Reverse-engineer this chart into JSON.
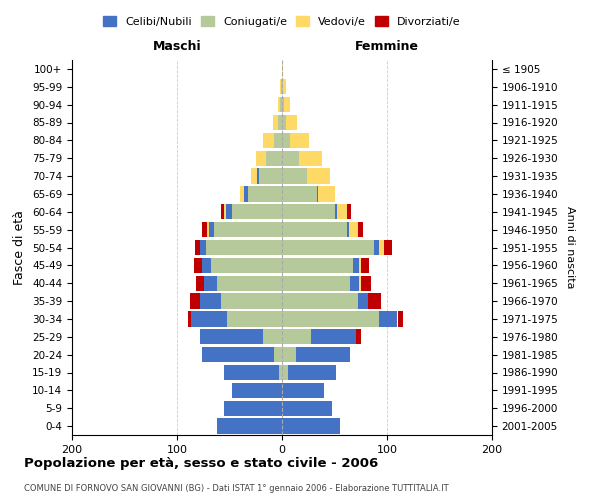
{
  "age_groups": [
    "100+",
    "95-99",
    "90-94",
    "85-89",
    "80-84",
    "75-79",
    "70-74",
    "65-69",
    "60-64",
    "55-59",
    "50-54",
    "45-49",
    "40-44",
    "35-39",
    "30-34",
    "25-29",
    "20-24",
    "15-19",
    "10-14",
    "5-9",
    "0-4"
  ],
  "birth_years": [
    "≤ 1905",
    "1906-1910",
    "1911-1915",
    "1916-1920",
    "1921-1925",
    "1926-1930",
    "1931-1935",
    "1936-1940",
    "1941-1945",
    "1946-1950",
    "1951-1955",
    "1956-1960",
    "1961-1965",
    "1966-1970",
    "1971-1975",
    "1976-1980",
    "1981-1985",
    "1986-1990",
    "1991-1995",
    "1996-2000",
    "2001-2005"
  ],
  "male": {
    "celibe": [
      0,
      0,
      0,
      0,
      0,
      0,
      2,
      4,
      5,
      5,
      6,
      8,
      12,
      20,
      35,
      60,
      68,
      52,
      48,
      55,
      62
    ],
    "coniugato": [
      0,
      1,
      2,
      4,
      8,
      15,
      22,
      32,
      48,
      65,
      72,
      68,
      62,
      58,
      52,
      18,
      8,
      3,
      0,
      0,
      0
    ],
    "vedovo": [
      0,
      1,
      2,
      5,
      10,
      10,
      6,
      4,
      2,
      1,
      0,
      0,
      0,
      0,
      0,
      0,
      0,
      0,
      0,
      0,
      0
    ],
    "divorziato": [
      0,
      0,
      0,
      0,
      0,
      0,
      0,
      0,
      3,
      5,
      5,
      8,
      8,
      10,
      3,
      0,
      0,
      0,
      0,
      0,
      0
    ]
  },
  "female": {
    "nubile": [
      0,
      0,
      0,
      0,
      0,
      0,
      0,
      1,
      2,
      2,
      4,
      5,
      8,
      10,
      18,
      42,
      52,
      45,
      40,
      48,
      55
    ],
    "coniugata": [
      0,
      1,
      2,
      4,
      8,
      16,
      24,
      33,
      50,
      62,
      88,
      68,
      65,
      72,
      92,
      28,
      13,
      6,
      0,
      0,
      0
    ],
    "vedova": [
      1,
      3,
      6,
      10,
      18,
      22,
      22,
      16,
      10,
      8,
      5,
      2,
      2,
      0,
      0,
      0,
      0,
      0,
      0,
      0,
      0
    ],
    "divorziata": [
      0,
      0,
      0,
      0,
      0,
      0,
      0,
      0,
      4,
      5,
      8,
      8,
      10,
      12,
      5,
      5,
      0,
      0,
      0,
      0,
      0
    ]
  },
  "colors": {
    "celibe_nubile": "#4472C4",
    "coniugato_a": "#B5C99A",
    "vedovo_a": "#FFD966",
    "divorziato_a": "#C00000"
  },
  "xlim": 200,
  "title": "Popolazione per età, sesso e stato civile - 2006",
  "subtitle": "COMUNE DI FORNOVO SAN GIOVANNI (BG) - Dati ISTAT 1° gennaio 2006 - Elaborazione TUTTITALIA.IT",
  "xlabel_left": "Maschi",
  "xlabel_right": "Femmine",
  "ylabel_left": "Fasce di età",
  "ylabel_right": "Anni di nascita",
  "legend_labels": [
    "Celibi/Nubili",
    "Coniugati/e",
    "Vedovi/e",
    "Divorziati/e"
  ],
  "bg_color": "#FFFFFF",
  "grid_color": "#CCCCCC"
}
